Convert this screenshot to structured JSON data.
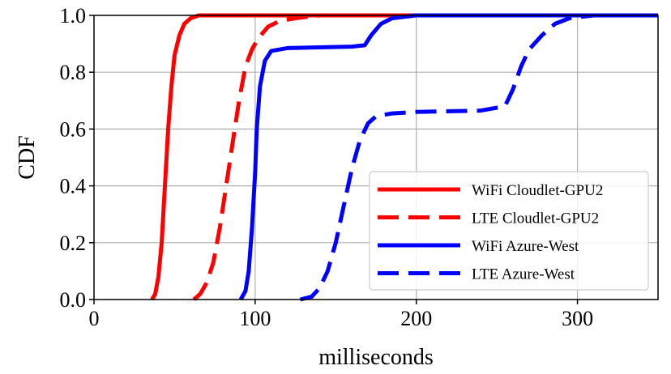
{
  "chart_data": {
    "type": "line",
    "title": "",
    "xlabel": "milliseconds",
    "ylabel": "CDF",
    "xlim": [
      0,
      350
    ],
    "ylim": [
      0,
      1
    ],
    "xticks": [
      0,
      100,
      200,
      300
    ],
    "yticks": [
      0.0,
      0.2,
      0.4,
      0.6,
      0.8,
      1.0
    ],
    "xtick_labels": [
      "0",
      "100",
      "200",
      "300"
    ],
    "ytick_labels": [
      "0.0",
      "0.2",
      "0.4",
      "0.6",
      "0.8",
      "1.0"
    ],
    "grid": true,
    "legend_position": "lower-right",
    "series": [
      {
        "name": "WiFi Cloudlet-GPU2",
        "color": "#ff0000",
        "style": "solid",
        "points": [
          [
            36,
            0
          ],
          [
            38,
            0.02
          ],
          [
            40,
            0.08
          ],
          [
            42,
            0.2
          ],
          [
            44,
            0.4
          ],
          [
            46,
            0.6
          ],
          [
            48,
            0.75
          ],
          [
            50,
            0.86
          ],
          [
            53,
            0.93
          ],
          [
            56,
            0.97
          ],
          [
            60,
            0.99
          ],
          [
            65,
            1.0
          ],
          [
            350,
            1.0
          ]
        ]
      },
      {
        "name": "LTE Cloudlet-GPU2",
        "color": "#ff0000",
        "style": "dashed",
        "points": [
          [
            62,
            0
          ],
          [
            66,
            0.02
          ],
          [
            70,
            0.06
          ],
          [
            74,
            0.13
          ],
          [
            78,
            0.25
          ],
          [
            82,
            0.4
          ],
          [
            86,
            0.55
          ],
          [
            90,
            0.7
          ],
          [
            94,
            0.82
          ],
          [
            98,
            0.88
          ],
          [
            102,
            0.92
          ],
          [
            108,
            0.96
          ],
          [
            115,
            0.98
          ],
          [
            125,
            0.99
          ],
          [
            140,
            1.0
          ],
          [
            350,
            1.0
          ]
        ]
      },
      {
        "name": "WiFi Azure-West",
        "color": "#0000ff",
        "style": "solid",
        "points": [
          [
            91,
            0
          ],
          [
            94,
            0.03
          ],
          [
            96,
            0.1
          ],
          [
            98,
            0.25
          ],
          [
            100,
            0.45
          ],
          [
            101,
            0.6
          ],
          [
            103,
            0.75
          ],
          [
            106,
            0.84
          ],
          [
            110,
            0.875
          ],
          [
            120,
            0.885
          ],
          [
            160,
            0.89
          ],
          [
            168,
            0.895
          ],
          [
            172,
            0.93
          ],
          [
            178,
            0.97
          ],
          [
            185,
            0.99
          ],
          [
            200,
            1.0
          ],
          [
            350,
            1.0
          ]
        ]
      },
      {
        "name": "LTE Azure-West",
        "color": "#0000ff",
        "style": "dashed",
        "points": [
          [
            128,
            0
          ],
          [
            135,
            0.01
          ],
          [
            140,
            0.04
          ],
          [
            145,
            0.1
          ],
          [
            150,
            0.2
          ],
          [
            155,
            0.33
          ],
          [
            160,
            0.46
          ],
          [
            165,
            0.56
          ],
          [
            170,
            0.62
          ],
          [
            175,
            0.645
          ],
          [
            185,
            0.655
          ],
          [
            200,
            0.66
          ],
          [
            240,
            0.665
          ],
          [
            255,
            0.68
          ],
          [
            260,
            0.74
          ],
          [
            265,
            0.82
          ],
          [
            270,
            0.88
          ],
          [
            278,
            0.93
          ],
          [
            286,
            0.97
          ],
          [
            295,
            0.99
          ],
          [
            310,
            1.0
          ],
          [
            350,
            1.0
          ]
        ]
      }
    ]
  }
}
